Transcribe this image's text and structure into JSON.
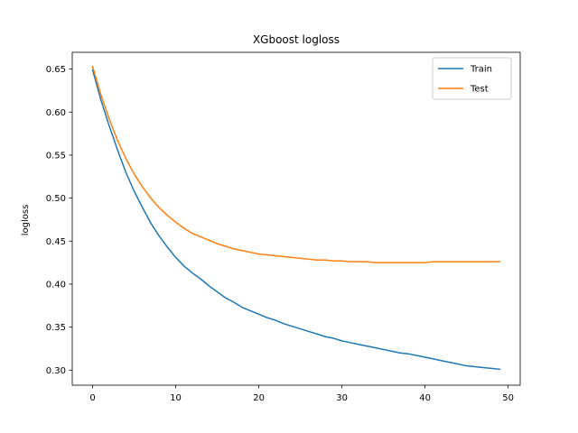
{
  "chart_data": {
    "type": "line",
    "title": "XGboost logloss",
    "xlabel": "",
    "ylabel": "logloss",
    "xlim": [
      -2.45,
      51.45
    ],
    "ylim": [
      0.2825,
      0.6695
    ],
    "xticks": [
      0,
      10,
      20,
      30,
      40,
      50
    ],
    "yticks": [
      0.3,
      0.35,
      0.4,
      0.45,
      0.5,
      0.55,
      0.6,
      0.65
    ],
    "grid": false,
    "legend": "top-right",
    "x": [
      0,
      1,
      2,
      3,
      4,
      5,
      6,
      7,
      8,
      9,
      10,
      11,
      12,
      13,
      14,
      15,
      16,
      17,
      18,
      19,
      20,
      21,
      22,
      23,
      24,
      25,
      26,
      27,
      28,
      29,
      30,
      31,
      32,
      33,
      34,
      35,
      36,
      37,
      38,
      39,
      40,
      41,
      42,
      43,
      44,
      45,
      46,
      47,
      48,
      49
    ],
    "series": [
      {
        "name": "Train",
        "color": "#1f77b4",
        "values": [
          0.649,
          0.614,
          0.584,
          0.556,
          0.53,
          0.508,
          0.489,
          0.471,
          0.456,
          0.443,
          0.431,
          0.421,
          0.413,
          0.406,
          0.398,
          0.391,
          0.384,
          0.379,
          0.373,
          0.369,
          0.365,
          0.361,
          0.358,
          0.354,
          0.351,
          0.348,
          0.345,
          0.342,
          0.339,
          0.337,
          0.334,
          0.332,
          0.33,
          0.328,
          0.326,
          0.324,
          0.322,
          0.32,
          0.319,
          0.317,
          0.315,
          0.313,
          0.311,
          0.309,
          0.307,
          0.305,
          0.304,
          0.303,
          0.302,
          0.301
        ]
      },
      {
        "name": "Test",
        "color": "#ff7f0e",
        "values": [
          0.653,
          0.62,
          0.592,
          0.567,
          0.546,
          0.528,
          0.513,
          0.5,
          0.489,
          0.48,
          0.472,
          0.465,
          0.459,
          0.455,
          0.451,
          0.447,
          0.444,
          0.441,
          0.439,
          0.437,
          0.435,
          0.434,
          0.433,
          0.432,
          0.431,
          0.43,
          0.429,
          0.428,
          0.428,
          0.427,
          0.427,
          0.426,
          0.426,
          0.426,
          0.425,
          0.425,
          0.425,
          0.425,
          0.425,
          0.425,
          0.425,
          0.426,
          0.426,
          0.426,
          0.426,
          0.426,
          0.426,
          0.426,
          0.426,
          0.426
        ]
      }
    ]
  }
}
